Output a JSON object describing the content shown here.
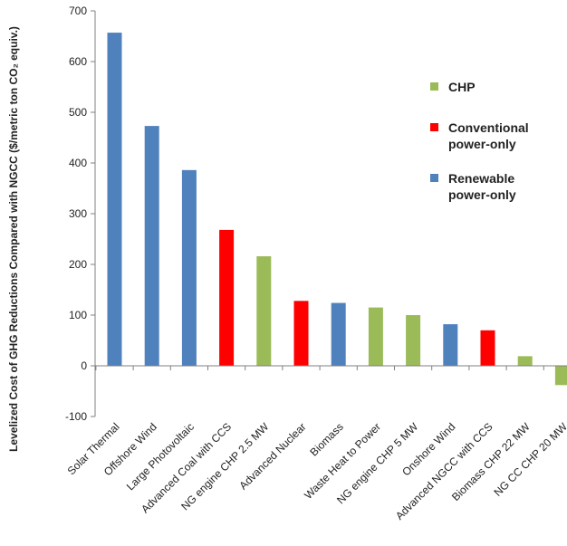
{
  "chart_data": {
    "type": "bar",
    "title": "",
    "ylabel": "Levelized Cost of GHG Reductions Compared with NGCC ($/metric ton CO₂ equiv.)",
    "xlabel": "",
    "ylim": [
      -100,
      700
    ],
    "yticks": [
      -100,
      0,
      100,
      200,
      300,
      400,
      500,
      600,
      700
    ],
    "grid": false,
    "legend_position": "top-right",
    "categories": [
      "Solar Thermal",
      "Offshore Wind",
      "Large Photovoltaic",
      "Advanced Coal with CCS",
      "NG engine CHP 2.5 MW",
      "Advanced Nuclear",
      "Biomass",
      "Waste Heat to Power",
      "NG engine CHP 5 MW",
      "Onshore Wind",
      "Advanced NGCC with CCS",
      "Biomass CHP 22 MW",
      "NG CC CHP 20 MW"
    ],
    "values": [
      657,
      473,
      386,
      268,
      216,
      128,
      124,
      115,
      100,
      82,
      70,
      19,
      -38
    ],
    "groups": [
      "renewable",
      "renewable",
      "renewable",
      "conventional",
      "chp",
      "conventional",
      "renewable",
      "chp",
      "chp",
      "renewable",
      "conventional",
      "chp",
      "chp"
    ],
    "legend": [
      {
        "key": "chp",
        "lines": [
          "CHP"
        ],
        "color": "#9bbb59"
      },
      {
        "key": "conventional",
        "lines": [
          "Conventional",
          "power-only"
        ],
        "color": "#ff0000"
      },
      {
        "key": "renewable",
        "lines": [
          "Renewable",
          "power-only"
        ],
        "color": "#4f81bd"
      }
    ]
  }
}
